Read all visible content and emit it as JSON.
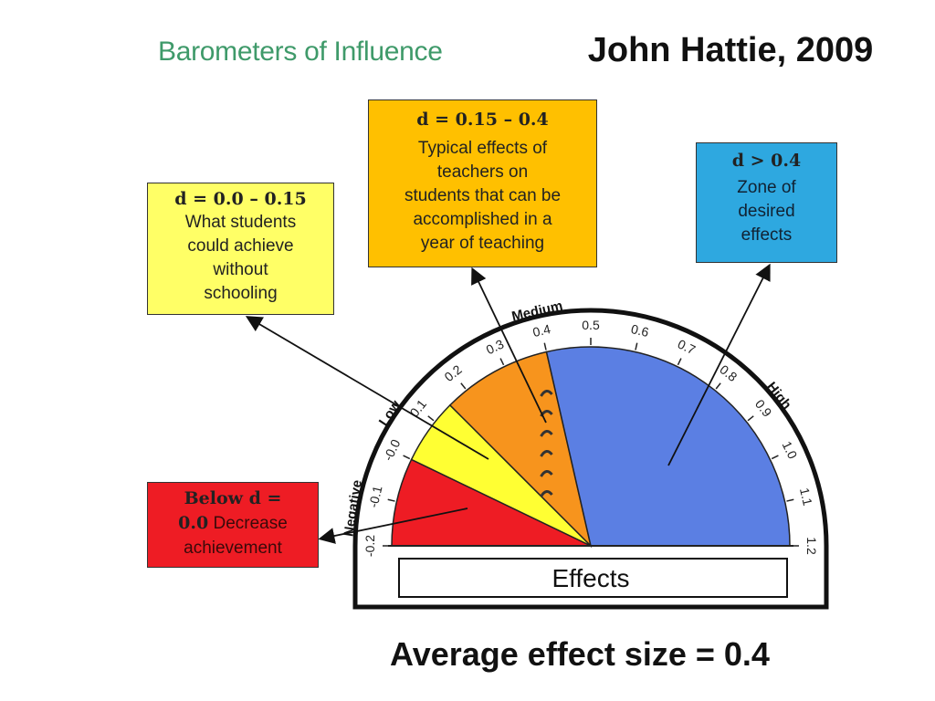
{
  "slide": {
    "title": "Barometers of Influence",
    "author": "John Hattie, 2009",
    "footer": "Average effect size = 0.4"
  },
  "callouts": {
    "low": {
      "heading": "d = 0.0 – 0.15",
      "lines": [
        "What students",
        "could achieve",
        "without",
        "schooling"
      ],
      "color": "#ffff66"
    },
    "mid": {
      "heading": "d = 0.15 – 0.4",
      "lines": [
        "Typical effects of",
        "teachers on",
        "students that can be",
        "accomplished in a",
        "year of teaching"
      ],
      "color": "#ffc000"
    },
    "high": {
      "heading": "d > 0.4",
      "lines": [
        "Zone of",
        "desired",
        "effects"
      ],
      "color": "#2ea8e0"
    },
    "negative": {
      "heading_a": "Below d =",
      "heading_b": "0.0",
      "text_a": " Decrease",
      "text_b": "achievement",
      "color": "#ee1c24"
    }
  },
  "gauge": {
    "zone_labels": [
      "Negative",
      "Low",
      "Medium",
      "High"
    ],
    "ticks": [
      "-0.2",
      "-0.1",
      "-0.0",
      "0.1",
      "0.2",
      "0.3",
      "0.4",
      "0.5",
      "0.6",
      "0.7",
      "0.8",
      "0.9",
      "1.0",
      "1.1",
      "1.2"
    ],
    "tick_values": [
      -0.2,
      -0.1,
      0.0,
      0.1,
      0.2,
      0.3,
      0.4,
      0.5,
      0.6,
      0.7,
      0.8,
      0.9,
      1.0,
      1.1,
      1.2
    ],
    "zones": [
      {
        "from": -0.2,
        "to": 0.0,
        "color": "#ee1c24"
      },
      {
        "from": 0.0,
        "to": 0.15,
        "color": "#ffff33"
      },
      {
        "from": 0.15,
        "to": 0.4,
        "color": "#f7941d"
      },
      {
        "from": 0.4,
        "to": 1.2,
        "color": "#5b7fe3"
      }
    ],
    "pointer_value": 0.4,
    "label": "Effects"
  }
}
